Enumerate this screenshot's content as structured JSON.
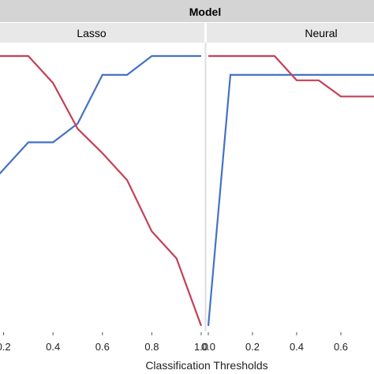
{
  "chart_data": {
    "type": "line",
    "group_title": "Model",
    "xlabel": "Classification Thresholds",
    "grid": false,
    "panels": [
      {
        "name": "Lasso",
        "xlim": [
          0.0,
          1.0
        ],
        "xticks": [
          "0.2",
          "0.4",
          "0.6",
          "0.8",
          "1.0"
        ],
        "xtick_values": [
          0.2,
          0.4,
          0.6,
          0.8,
          1.0
        ],
        "series": [
          {
            "color": "#4472c4",
            "x": [
              0.0,
              0.1,
              0.2,
              0.3,
              0.4,
              0.5,
              0.6,
              0.7,
              0.8,
              0.9,
              1.0
            ],
            "y": [
              0.38,
              0.48,
              0.58,
              0.68,
              0.68,
              0.75,
              0.93,
              0.93,
              1.0,
              1.0,
              1.0
            ]
          },
          {
            "color": "#c44058",
            "x": [
              0.0,
              0.1,
              0.2,
              0.3,
              0.4,
              0.5,
              0.6,
              0.7,
              0.8,
              0.9,
              1.0
            ],
            "y": [
              1.0,
              1.0,
              1.0,
              1.0,
              0.9,
              0.73,
              0.64,
              0.54,
              0.35,
              0.25,
              0.0
            ]
          }
        ]
      },
      {
        "name": "Neural",
        "xlim": [
          0.0,
          0.75
        ],
        "xticks": [
          "0.0",
          "0.2",
          "0.4",
          "0.6"
        ],
        "xtick_values": [
          0.0,
          0.2,
          0.4,
          0.6
        ],
        "series": [
          {
            "color": "#4472c4",
            "x": [
              0.0,
              0.1,
              0.75
            ],
            "y": [
              0.0,
              0.93,
              0.93
            ]
          },
          {
            "color": "#c44058",
            "x": [
              0.0,
              0.1,
              0.2,
              0.3,
              0.4,
              0.5,
              0.6,
              0.75
            ],
            "y": [
              1.0,
              1.0,
              1.0,
              1.0,
              0.91,
              0.91,
              0.85,
              0.85
            ]
          }
        ]
      }
    ]
  }
}
